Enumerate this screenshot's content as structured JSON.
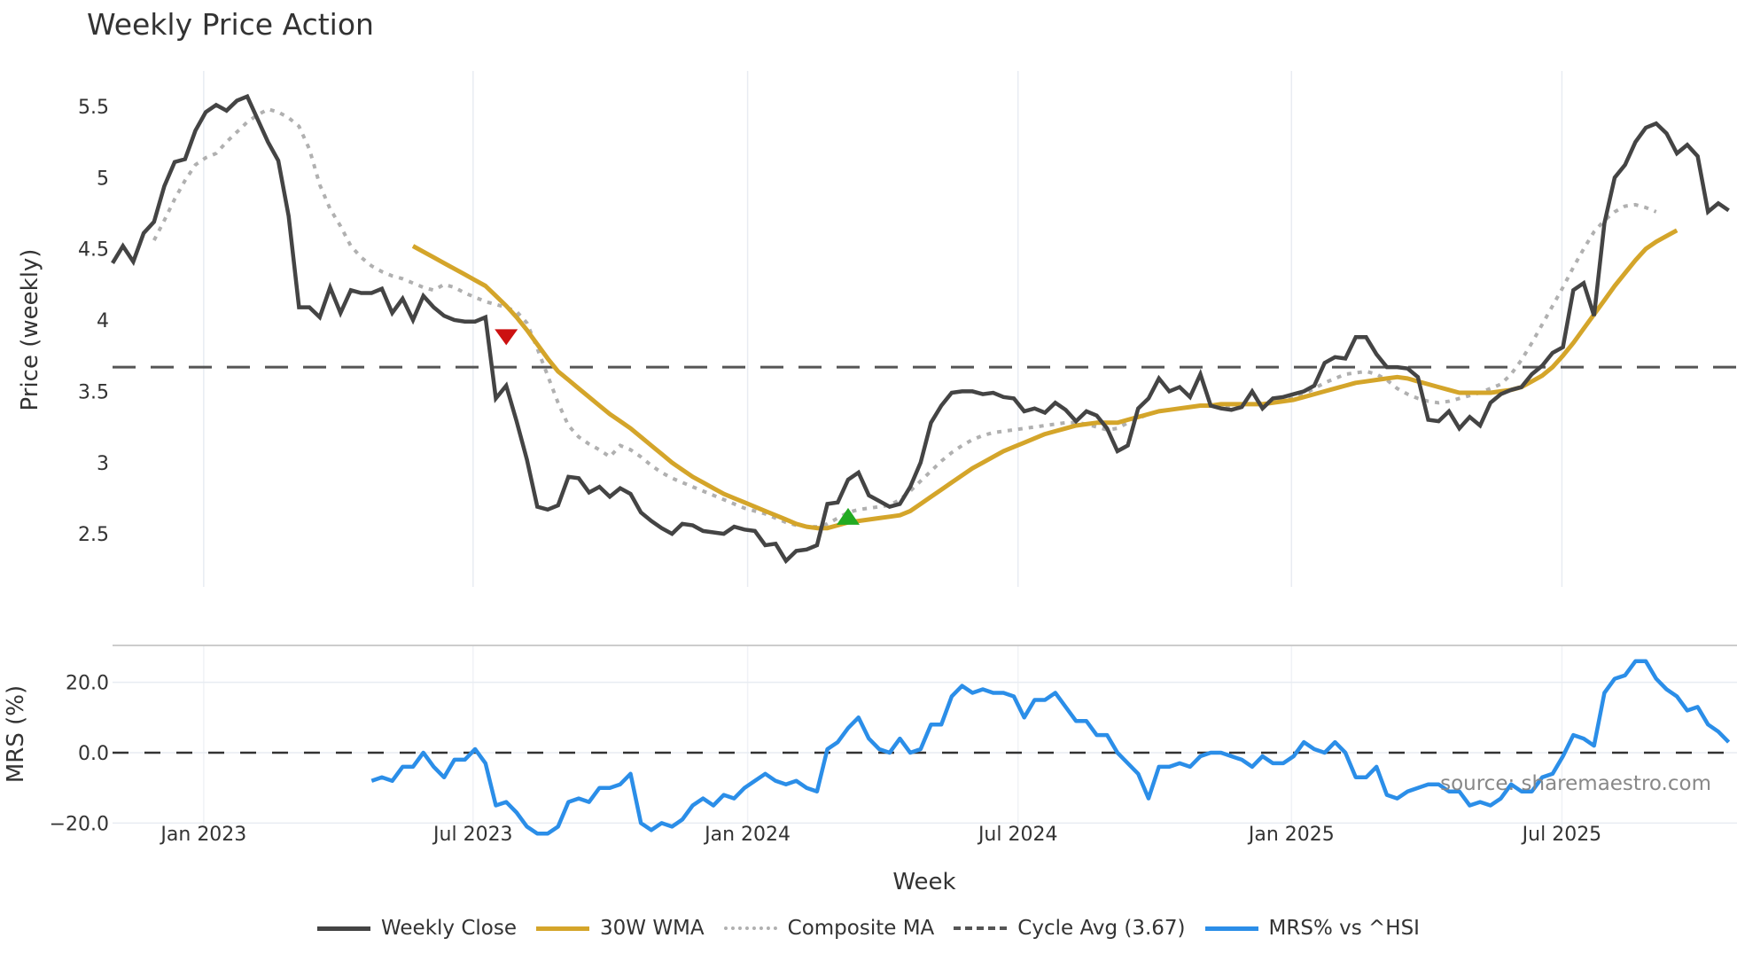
{
  "title": "Weekly Price Action",
  "source_label": "source: sharemaestro.com",
  "legend": [
    {
      "label": "Weekly Close",
      "color": "#444444",
      "style": "solid"
    },
    {
      "label": "30W WMA",
      "color": "#d4a52a",
      "style": "solid"
    },
    {
      "label": "Composite MA",
      "color": "#b0b0b0",
      "style": "dotted"
    },
    {
      "label": "Cycle Avg (3.67)",
      "color": "#555555",
      "style": "dashed"
    },
    {
      "label": "MRS% vs ^HSI",
      "color": "#2b8ee8",
      "style": "solid"
    }
  ],
  "chart_data": [
    {
      "type": "line",
      "title": "Weekly Price Action",
      "xlabel": "Week",
      "ylabel": "Price (weekly)",
      "ylim": [
        2.15,
        5.75
      ],
      "yticks": [
        2.5,
        3,
        3.5,
        4,
        4.5,
        5,
        5.5
      ],
      "ytick_labels": [
        "2.5",
        "3",
        "3.5",
        "4",
        "4.5",
        "5",
        "5.5"
      ],
      "xtick_labels": [
        "Jan 2023",
        "Jul 2023",
        "Jan 2024",
        "Jul 2024",
        "Jan 2025",
        "Jul 2025"
      ],
      "xtick_weeks": [
        8.8,
        34.8,
        61.3,
        87.4,
        113.8,
        139.9
      ],
      "grid": true,
      "cycle_avg": 3.67,
      "markers": [
        {
          "type": "sell",
          "shape": "triangle-down",
          "color": "#cc1111",
          "week": 38,
          "value": 3.88
        },
        {
          "type": "buy",
          "shape": "triangle-up",
          "color": "#22aa22",
          "week": 71,
          "value": 2.62
        }
      ],
      "series": [
        {
          "name": "Weekly Close",
          "start_week": 0,
          "values": [
            4.4,
            4.52,
            4.41,
            4.61,
            4.69,
            4.94,
            5.11,
            5.13,
            5.33,
            5.46,
            5.51,
            5.47,
            5.54,
            5.57,
            5.41,
            5.25,
            5.12,
            4.73,
            4.09,
            4.09,
            4.02,
            4.23,
            4.05,
            4.21,
            4.19,
            4.19,
            4.22,
            4.05,
            4.15,
            4.0,
            4.17,
            4.09,
            4.03,
            4.0,
            3.99,
            3.99,
            4.02,
            3.45,
            3.54,
            3.29,
            3.02,
            2.69,
            2.67,
            2.7,
            2.9,
            2.89,
            2.79,
            2.83,
            2.76,
            2.82,
            2.78,
            2.65,
            2.59,
            2.54,
            2.5,
            2.57,
            2.56,
            2.52,
            2.51,
            2.5,
            2.55,
            2.53,
            2.52,
            2.42,
            2.43,
            2.31,
            2.38,
            2.39,
            2.42,
            2.71,
            2.72,
            2.88,
            2.93,
            2.77,
            2.73,
            2.69,
            2.71,
            2.83,
            3.0,
            3.28,
            3.4,
            3.49,
            3.5,
            3.5,
            3.48,
            3.49,
            3.46,
            3.45,
            3.36,
            3.38,
            3.35,
            3.42,
            3.37,
            3.29,
            3.36,
            3.33,
            3.24,
            3.08,
            3.12,
            3.38,
            3.45,
            3.59,
            3.5,
            3.53,
            3.46,
            3.62,
            3.4,
            3.38,
            3.37,
            3.39,
            3.5,
            3.38,
            3.45,
            3.46,
            3.48,
            3.5,
            3.54,
            3.7,
            3.74,
            3.73,
            3.88,
            3.88,
            3.76,
            3.67,
            3.67,
            3.66,
            3.6,
            3.3,
            3.29,
            3.36,
            3.24,
            3.32,
            3.26,
            3.42,
            3.48,
            3.51,
            3.53,
            3.62,
            3.68,
            3.77,
            3.81,
            4.21,
            4.26,
            4.03,
            4.68,
            5.0,
            5.09,
            5.25,
            5.35,
            5.38,
            5.31,
            5.17,
            5.23,
            5.15,
            4.76,
            4.82,
            4.77
          ]
        },
        {
          "name": "30W WMA",
          "start_week": 29,
          "values": [
            4.52,
            4.48,
            4.44,
            4.4,
            4.36,
            4.32,
            4.28,
            4.24,
            4.17,
            4.1,
            4.02,
            3.93,
            3.83,
            3.73,
            3.64,
            3.58,
            3.52,
            3.46,
            3.4,
            3.34,
            3.29,
            3.24,
            3.18,
            3.12,
            3.06,
            3.0,
            2.95,
            2.9,
            2.86,
            2.82,
            2.78,
            2.75,
            2.72,
            2.69,
            2.66,
            2.63,
            2.6,
            2.57,
            2.55,
            2.54,
            2.54,
            2.56,
            2.58,
            2.59,
            2.6,
            2.61,
            2.62,
            2.63,
            2.66,
            2.71,
            2.76,
            2.81,
            2.86,
            2.91,
            2.96,
            3.0,
            3.04,
            3.08,
            3.11,
            3.14,
            3.17,
            3.2,
            3.22,
            3.24,
            3.26,
            3.27,
            3.28,
            3.28,
            3.28,
            3.3,
            3.32,
            3.34,
            3.36,
            3.37,
            3.38,
            3.39,
            3.4,
            3.4,
            3.41,
            3.41,
            3.41,
            3.41,
            3.41,
            3.42,
            3.43,
            3.44,
            3.46,
            3.48,
            3.5,
            3.52,
            3.54,
            3.56,
            3.57,
            3.58,
            3.59,
            3.6,
            3.59,
            3.57,
            3.55,
            3.53,
            3.51,
            3.49,
            3.49,
            3.49,
            3.49,
            3.5,
            3.51,
            3.53,
            3.57,
            3.61,
            3.67,
            3.75,
            3.84,
            3.94,
            4.04,
            4.14,
            4.24,
            4.33,
            4.42,
            4.5,
            4.55,
            4.59,
            4.63
          ]
        },
        {
          "name": "Composite MA",
          "start_week": 4,
          "values": [
            4.56,
            4.7,
            4.85,
            4.98,
            5.09,
            5.14,
            5.17,
            5.25,
            5.32,
            5.39,
            5.44,
            5.48,
            5.46,
            5.42,
            5.36,
            5.2,
            4.95,
            4.78,
            4.66,
            4.52,
            4.44,
            4.38,
            4.34,
            4.31,
            4.29,
            4.26,
            4.23,
            4.21,
            4.25,
            4.23,
            4.19,
            4.16,
            4.13,
            4.11,
            4.09,
            4.06,
            3.98,
            3.8,
            3.61,
            3.42,
            3.26,
            3.18,
            3.13,
            3.09,
            3.04,
            3.12,
            3.09,
            3.04,
            2.98,
            2.93,
            2.89,
            2.86,
            2.83,
            2.8,
            2.77,
            2.74,
            2.71,
            2.68,
            2.66,
            2.64,
            2.61,
            2.58,
            2.56,
            2.55,
            2.55,
            2.57,
            2.61,
            2.65,
            2.67,
            2.68,
            2.69,
            2.7,
            2.74,
            2.8,
            2.87,
            2.94,
            3.01,
            3.07,
            3.12,
            3.16,
            3.19,
            3.21,
            3.22,
            3.23,
            3.24,
            3.25,
            3.26,
            3.27,
            3.28,
            3.28,
            3.27,
            3.25,
            3.23,
            3.24,
            3.28,
            3.31,
            3.34,
            3.36,
            3.37,
            3.38,
            3.39,
            3.4,
            3.4,
            3.39,
            3.4,
            3.41,
            3.41,
            3.42,
            3.43,
            3.44,
            3.45,
            3.48,
            3.52,
            3.56,
            3.59,
            3.62,
            3.63,
            3.64,
            3.62,
            3.58,
            3.52,
            3.48,
            3.45,
            3.43,
            3.42,
            3.43,
            3.45,
            3.47,
            3.49,
            3.52,
            3.55,
            3.62,
            3.72,
            3.84,
            3.97,
            4.1,
            4.23,
            4.37,
            4.5,
            4.62,
            4.7,
            4.76,
            4.8,
            4.81,
            4.79,
            4.76
          ]
        },
        {
          "name": "Cycle Avg (3.67)",
          "constant": 3.67
        }
      ]
    },
    {
      "type": "line",
      "ylabel": "MRS (%)",
      "ylim": [
        -27,
        30
      ],
      "yticks": [
        -20,
        0,
        20
      ],
      "ytick_labels": [
        "−20.0",
        "0.0",
        "20.0"
      ],
      "zero_line": "dashed",
      "series": [
        {
          "name": "MRS% vs ^HSI",
          "start_week": 25,
          "values": [
            -8,
            -7,
            -8,
            -4,
            -4,
            0,
            -4,
            -7,
            -2,
            -2,
            1,
            -3,
            -15,
            -14,
            -17,
            -21,
            -23,
            -23,
            -21,
            -14,
            -13,
            -14,
            -10,
            -10,
            -9,
            -6,
            -20,
            -22,
            -20,
            -21,
            -19,
            -15,
            -13,
            -15,
            -12,
            -13,
            -10,
            -8,
            -6,
            -8,
            -9,
            -8,
            -10,
            -11,
            1,
            3,
            7,
            10,
            4,
            1,
            0,
            4,
            0,
            1,
            8,
            8,
            16,
            19,
            17,
            18,
            17,
            17,
            16,
            10,
            15,
            15,
            17,
            13,
            9,
            9,
            5,
            5,
            0,
            -3,
            -6,
            -13,
            -4,
            -4,
            -3,
            -4,
            -1,
            0,
            0,
            -1,
            -2,
            -4,
            -1,
            -3,
            -3,
            -1,
            3,
            1,
            0,
            3,
            0,
            -7,
            -7,
            -4,
            -12,
            -13,
            -11,
            -10,
            -9,
            -9,
            -11,
            -11,
            -15,
            -14,
            -15,
            -13,
            -9,
            -11,
            -11,
            -7,
            -6,
            -1,
            5,
            4,
            2,
            17,
            21,
            22,
            26,
            26,
            21,
            18,
            16,
            12,
            13,
            8,
            6,
            3
          ]
        }
      ]
    }
  ]
}
